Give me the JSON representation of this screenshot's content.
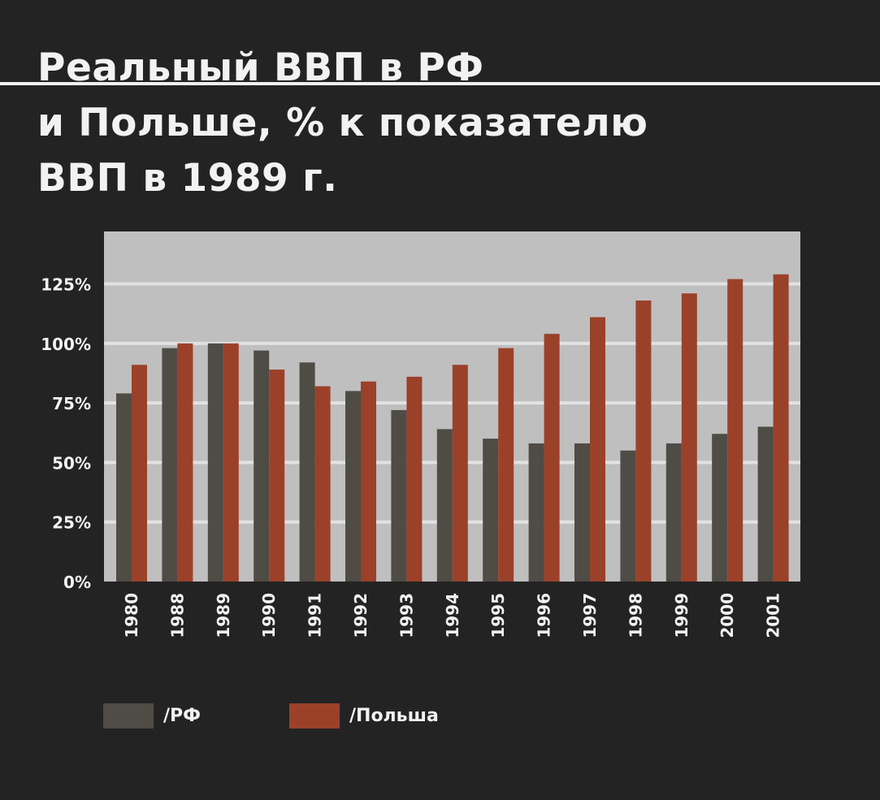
{
  "title_lines": [
    "Реальный ВВП в РФ",
    "и  Польше,  %  к  показателю",
    "ВВП в 1989 г."
  ],
  "colors": {
    "rf": "#4f4b45",
    "poland": "#9b412a",
    "plot_bg": "#bfbfbf",
    "grid": "#e2e2e2"
  },
  "legend": {
    "rf": "/РФ",
    "poland": "/Польша"
  },
  "chart_data": {
    "type": "bar",
    "title": "Реальный ВВП в РФ и Польше, % к показателю ВВП в 1989 г.",
    "xlabel": "",
    "ylabel": "",
    "ylim": [
      0,
      147
    ],
    "yticks": [
      0,
      25,
      50,
      75,
      100,
      125
    ],
    "ytick_labels": [
      "0%",
      "25%",
      "50%",
      "75%",
      "100%",
      "125%"
    ],
    "grid": true,
    "legend_position": "bottom-left",
    "categories": [
      "1980",
      "1988",
      "1989",
      "1990",
      "1991",
      "1992",
      "1993",
      "1994",
      "1995",
      "1996",
      "1997",
      "1998",
      "1999",
      "2000",
      "2001"
    ],
    "series": [
      {
        "name": "/РФ",
        "values": [
          79,
          98,
          100,
          97,
          92,
          80,
          72,
          64,
          60,
          58,
          58,
          55,
          58,
          62,
          65
        ]
      },
      {
        "name": "/Польша",
        "values": [
          91,
          100,
          100,
          89,
          82,
          84,
          86,
          91,
          98,
          104,
          111,
          118,
          121,
          127,
          129
        ]
      }
    ]
  }
}
